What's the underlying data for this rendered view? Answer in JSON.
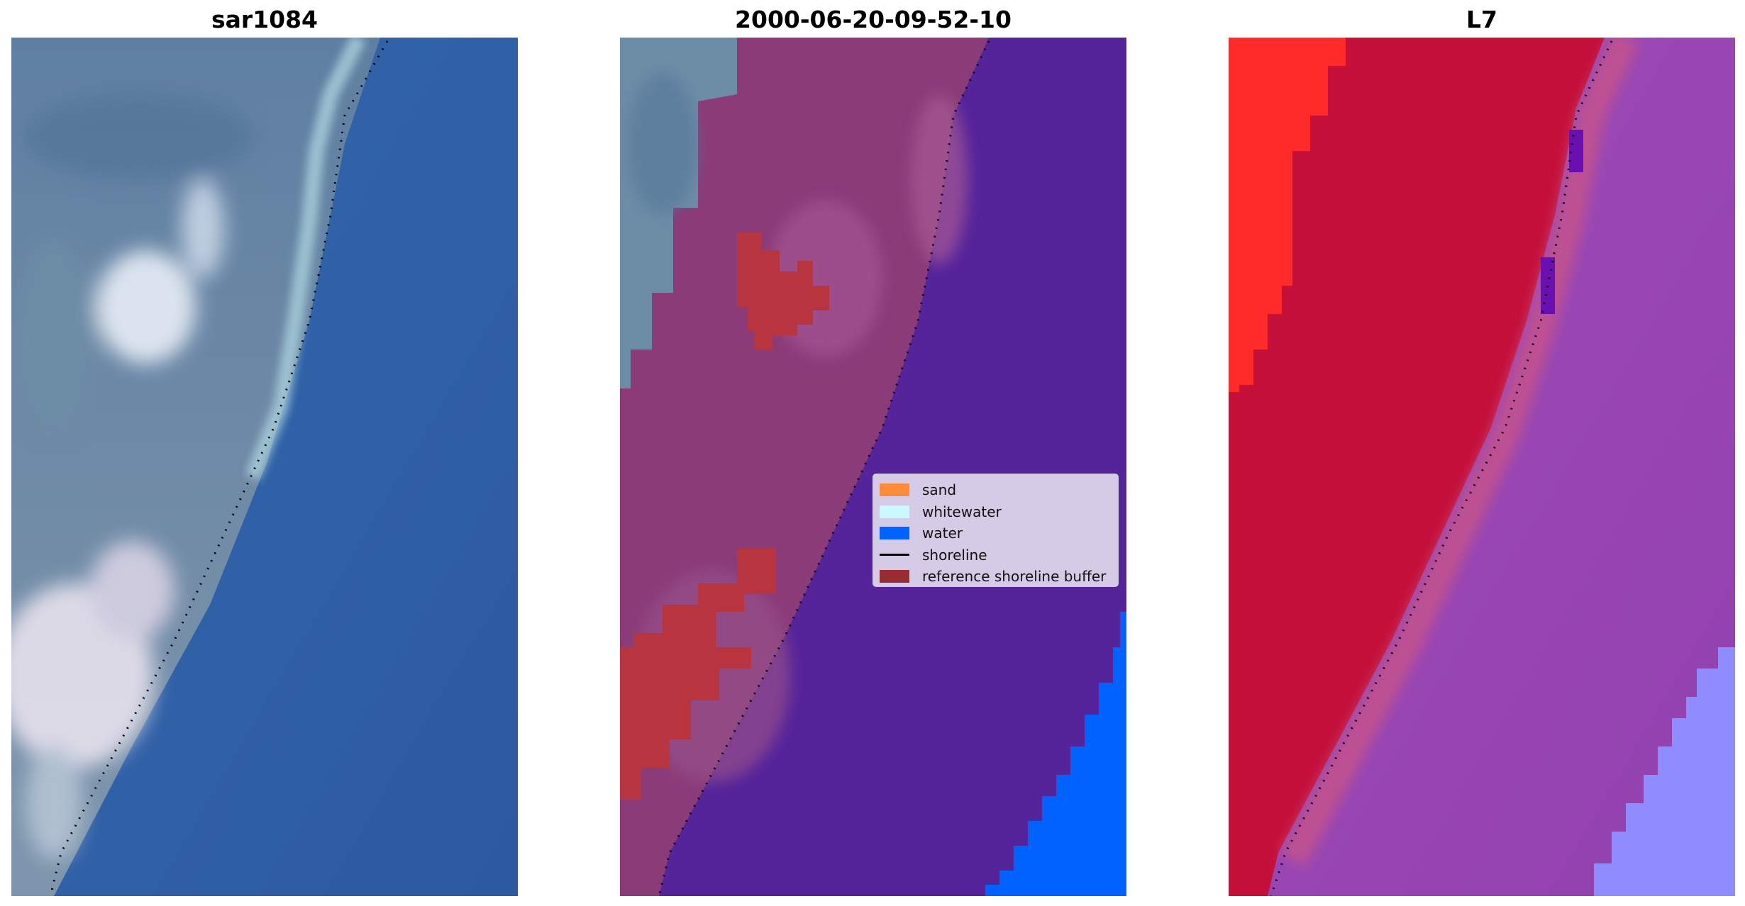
{
  "panels": [
    {
      "title": "sar1084"
    },
    {
      "title": "2000-06-20-09-52-10"
    },
    {
      "title": "L7"
    }
  ],
  "legend": {
    "items": [
      {
        "label": "sand",
        "kind": "patch",
        "color": "#ff8c3a"
      },
      {
        "label": "whitewater",
        "kind": "patch",
        "color": "#ccf8ff"
      },
      {
        "label": "water",
        "kind": "patch",
        "color": "#0062ff"
      },
      {
        "label": "shoreline",
        "kind": "line",
        "color": "#000000"
      },
      {
        "label": "reference shoreline buffer",
        "kind": "patch",
        "color": "#9b2a33"
      }
    ]
  },
  "colors": {
    "sea_rgb": "#2e5fa6",
    "land_rgb": "#6f8fa8",
    "classified_water": "#55239a",
    "classified_land_overlay": "#8a3b78",
    "classified_water_bright": "#0062ff",
    "buffer_red": "#b8353f",
    "l7_red": "#c4103a",
    "l7_bright_red": "#ff2a2a",
    "l7_purple": "#9b40b5",
    "l7_lavender": "#8f8cff"
  }
}
